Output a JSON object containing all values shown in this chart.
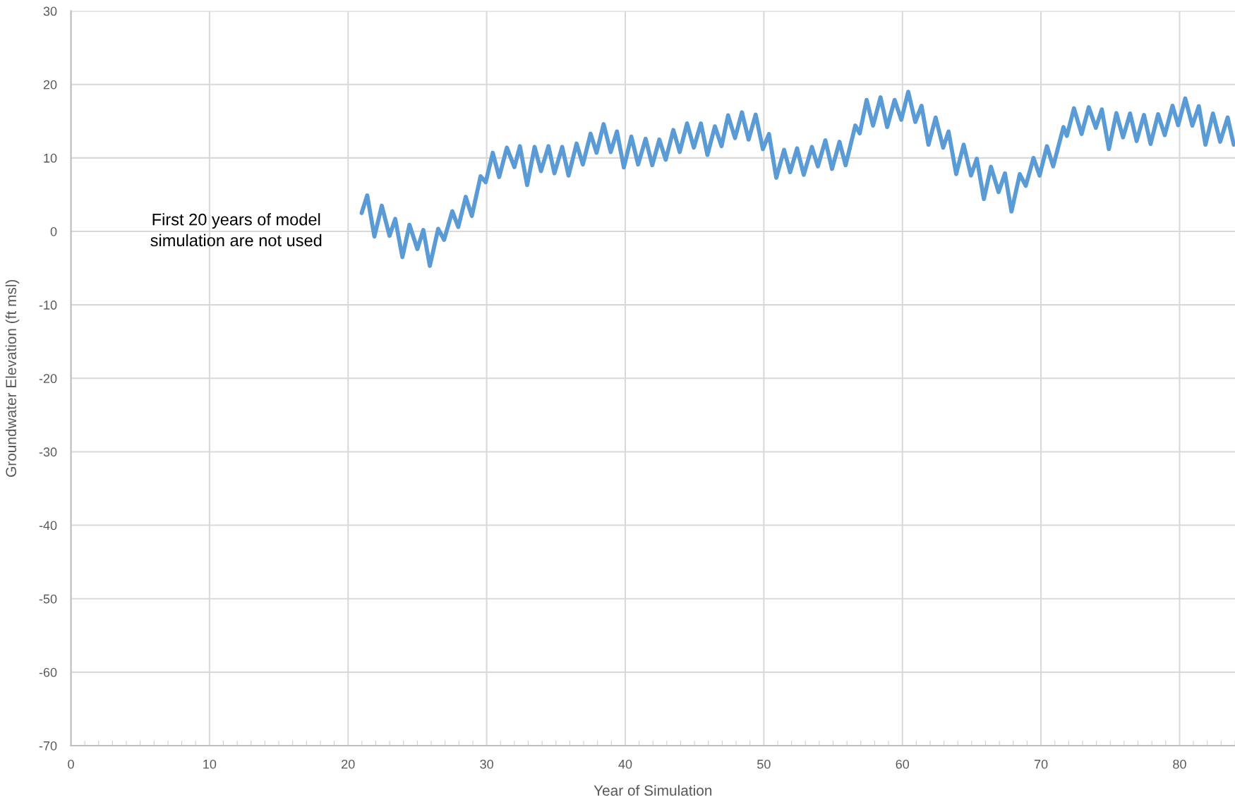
{
  "chart_data": {
    "type": "line",
    "xlabel": "Year of Simulation",
    "ylabel": "Groundwater Elevation (ft msl)",
    "annotations": [
      "First 20 years of model\nsimulation are not used"
    ],
    "xlim": [
      0,
      84
    ],
    "xticks": [
      0,
      10,
      20,
      30,
      40,
      50,
      60,
      70,
      80
    ],
    "ylim": [
      -70,
      30
    ],
    "yticks": [
      -70,
      -60,
      -50,
      -40,
      -30,
      -20,
      -10,
      0,
      10,
      20,
      30
    ],
    "grid": true,
    "legend": false,
    "marker": "none",
    "line_style": "solid",
    "series": [
      {
        "color": "#5b9bd5",
        "x": [
          20.98,
          21.38,
          21.9,
          22.43,
          22.99,
          23.4,
          23.92,
          24.43,
          25.0,
          25.43,
          25.9,
          26.5,
          26.93,
          27.52,
          27.95,
          28.49,
          28.93,
          29.56,
          29.93,
          30.44,
          30.9,
          31.46,
          32.0,
          32.4,
          32.92,
          33.46,
          33.92,
          34.46,
          34.89,
          35.45,
          35.91,
          36.49,
          36.94,
          37.5,
          37.93,
          38.44,
          38.95,
          39.4,
          39.9,
          40.44,
          40.93,
          41.47,
          41.95,
          42.46,
          42.92,
          43.47,
          43.93,
          44.46,
          44.95,
          45.46,
          45.93,
          46.47,
          46.95,
          47.42,
          47.92,
          48.42,
          48.9,
          49.41,
          49.93,
          50.37,
          50.9,
          51.46,
          51.9,
          52.4,
          52.88,
          53.47,
          53.9,
          54.44,
          54.92,
          55.46,
          55.9,
          56.6,
          56.92,
          57.42,
          57.88,
          58.42,
          58.9,
          59.44,
          59.92,
          60.42,
          60.93,
          61.38,
          61.88,
          62.4,
          62.94,
          63.33,
          63.88,
          64.42,
          64.95,
          65.37,
          65.88,
          66.39,
          66.94,
          67.4,
          67.87,
          68.47,
          68.9,
          69.46,
          69.9,
          70.43,
          70.88,
          71.62,
          71.87,
          72.38,
          72.93,
          73.45,
          73.96,
          74.39,
          74.9,
          75.44,
          75.92,
          76.43,
          76.9,
          77.43,
          77.91,
          78.45,
          78.93,
          79.49,
          79.9,
          80.41,
          80.92,
          81.39,
          81.87,
          82.41,
          82.93,
          83.47,
          83.91
        ],
        "values": [
          2.5,
          4.9,
          -0.7,
          3.5,
          -0.6,
          1.7,
          -3.5,
          0.9,
          -2.4,
          0.2,
          -4.7,
          0.35,
          -1.15,
          2.75,
          0.6,
          4.7,
          2.1,
          7.5,
          6.7,
          10.7,
          7.4,
          11.4,
          8.75,
          11.6,
          6.3,
          11.5,
          8.2,
          11.6,
          7.9,
          11.5,
          7.6,
          11.95,
          9.1,
          13.3,
          10.7,
          14.6,
          10.8,
          13.6,
          8.7,
          12.9,
          9.1,
          12.6,
          9.0,
          12.5,
          9.75,
          13.8,
          10.8,
          14.7,
          11.4,
          14.7,
          10.4,
          14.3,
          11.6,
          15.8,
          12.7,
          16.2,
          12.5,
          15.9,
          11.2,
          13.25,
          7.3,
          11.1,
          8.05,
          11.3,
          7.7,
          11.5,
          8.85,
          12.4,
          8.5,
          12.2,
          9.0,
          14.4,
          13.35,
          17.9,
          14.4,
          18.25,
          14.2,
          17.9,
          15.2,
          19.0,
          14.9,
          17.1,
          11.8,
          15.5,
          11.4,
          13.6,
          7.8,
          11.8,
          7.6,
          9.9,
          4.4,
          8.8,
          5.35,
          7.9,
          2.7,
          7.8,
          6.2,
          10.0,
          7.6,
          11.6,
          8.85,
          14.2,
          13.0,
          16.75,
          13.25,
          16.9,
          14.1,
          16.6,
          11.2,
          16.1,
          12.8,
          16.05,
          12.3,
          15.85,
          11.9,
          15.95,
          13.1,
          17.1,
          14.45,
          18.1,
          14.4,
          17.05,
          11.8,
          16.05,
          12.2,
          15.5,
          11.8
        ]
      }
    ]
  }
}
